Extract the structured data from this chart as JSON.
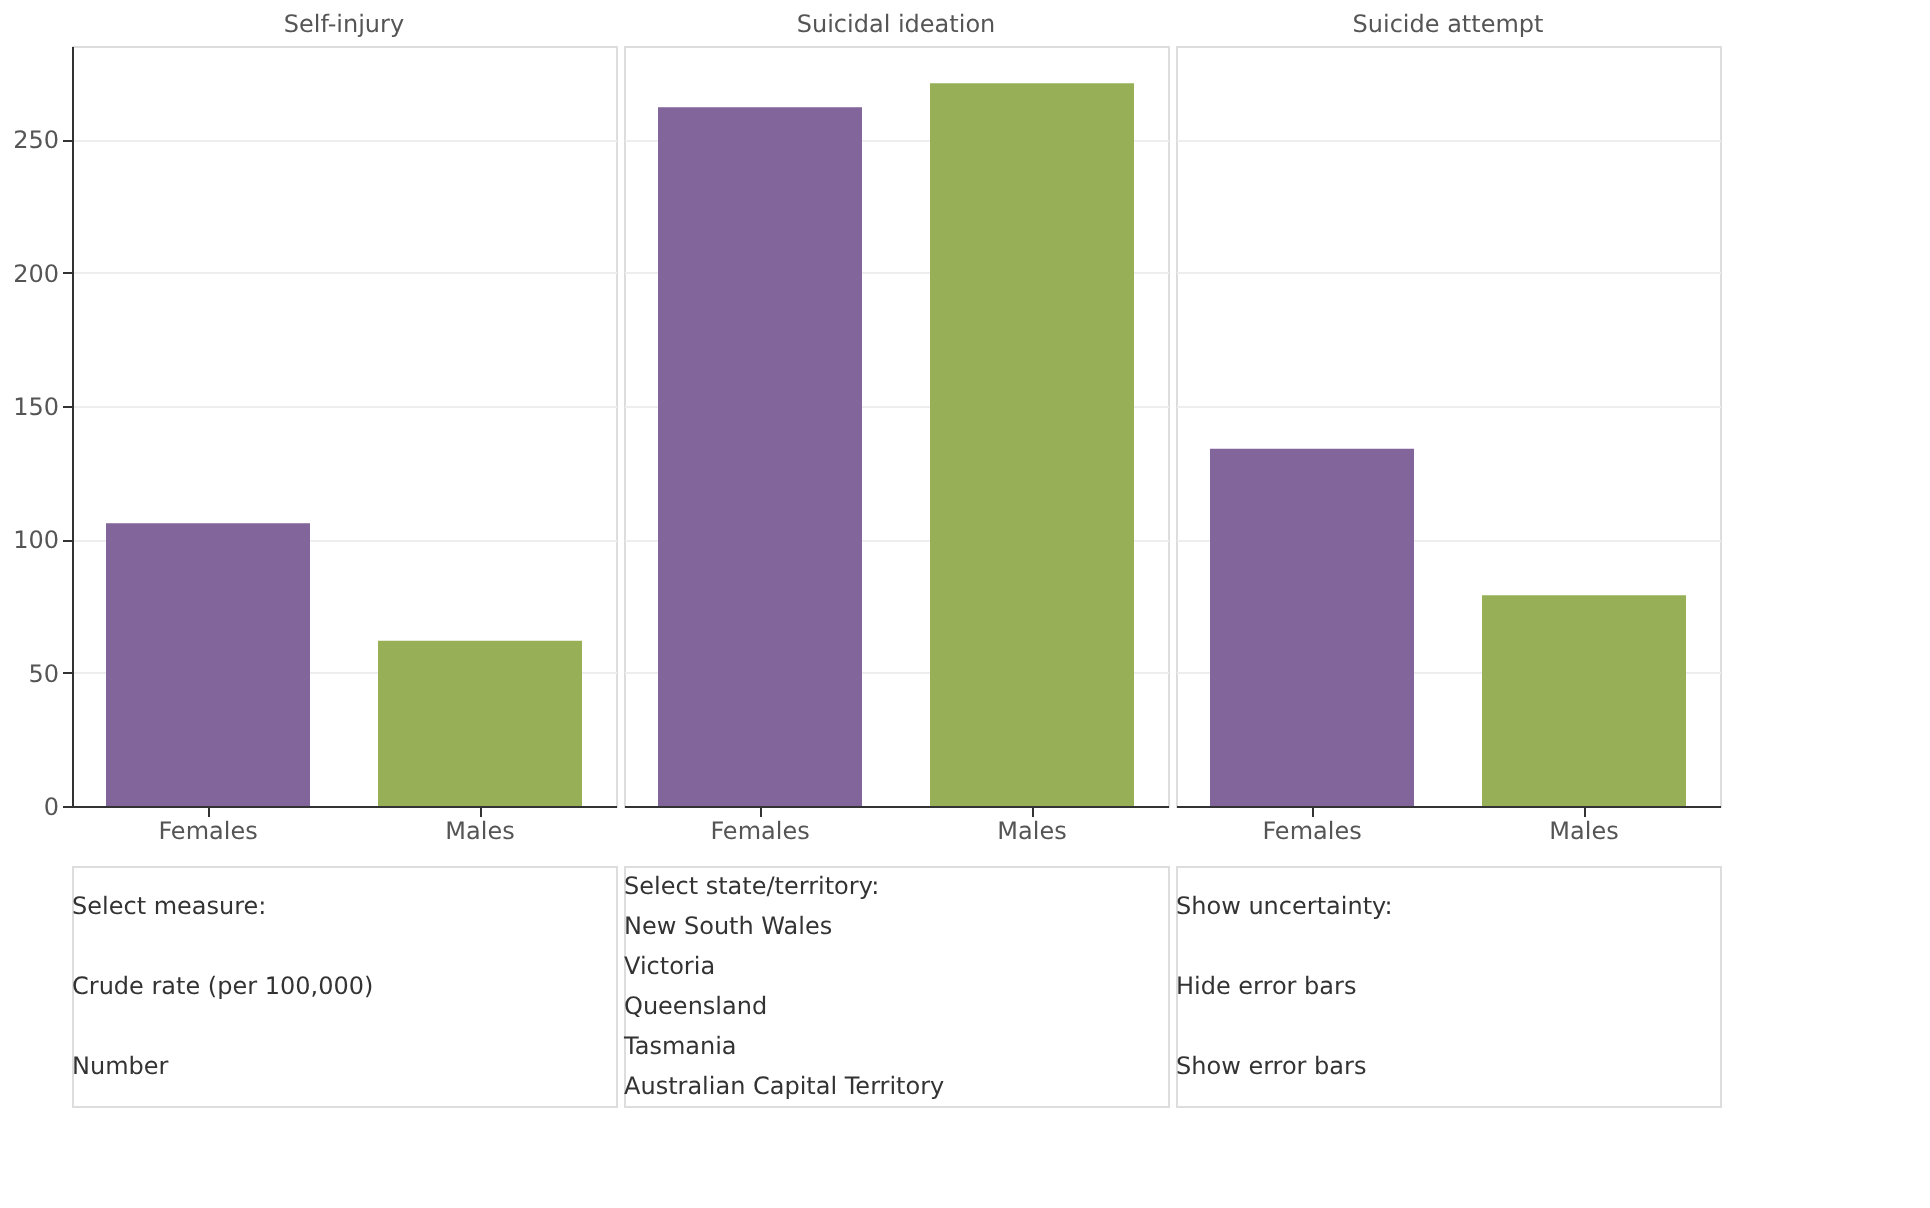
{
  "chart_data": [
    {
      "type": "bar",
      "title": "Self-injury",
      "categories": [
        "Females",
        "Males"
      ],
      "values": [
        106,
        62
      ],
      "colors": [
        "#82659a",
        "#97b057"
      ],
      "ylim": [
        0,
        285
      ],
      "yticks": [
        0,
        50,
        100,
        150,
        200,
        250
      ],
      "grid": "y"
    },
    {
      "type": "bar",
      "title": "Suicidal ideation",
      "categories": [
        "Females",
        "Males"
      ],
      "values": [
        262,
        271
      ],
      "colors": [
        "#82659a",
        "#97b057"
      ],
      "ylim": [
        0,
        285
      ],
      "yticks": [
        0,
        50,
        100,
        150,
        200,
        250
      ],
      "grid": "y",
      "tick_labels": "x"
    },
    {
      "type": "bar",
      "title": "Suicide attempt",
      "categories": [
        "Females",
        "Males"
      ],
      "values": [
        134,
        79
      ],
      "colors": [
        "#82659a",
        "#97b057"
      ],
      "ylim": [
        0,
        285
      ],
      "yticks": [
        0,
        50,
        100,
        150,
        200,
        250
      ],
      "grid": "y",
      "tick_labels": "x"
    },
    {
      "type": "other",
      "annotations": [
        "Select measure:",
        "Crude rate (per 100,000)",
        "Number"
      ]
    },
    {
      "type": "other",
      "annotations": [
        "Select state/territory:",
        "New South Wales",
        "Victoria",
        "Queensland",
        "Tasmania",
        "Australian Capital Territory"
      ]
    },
    {
      "type": "other",
      "annotations": [
        "Show uncertainty:",
        "Hide error bars",
        "Show error bars"
      ]
    }
  ]
}
